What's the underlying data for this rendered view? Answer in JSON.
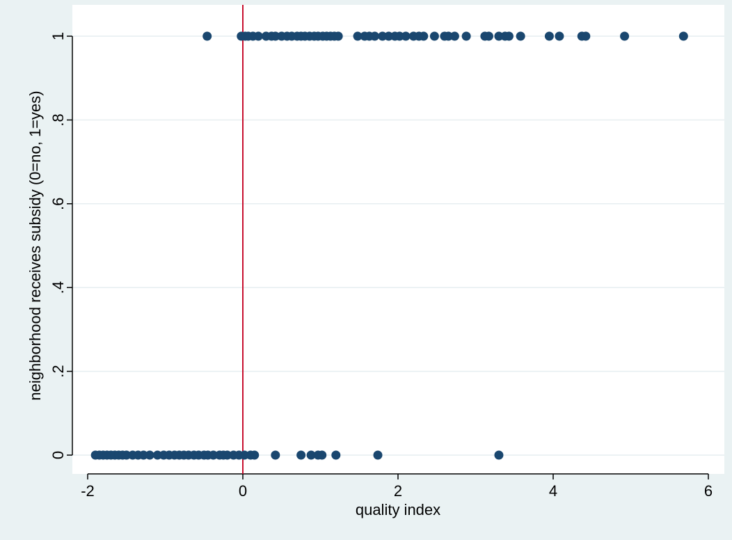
{
  "chart_data": {
    "type": "scatter",
    "title": "",
    "xlabel": "quality index",
    "ylabel": "neighborhood receives subsidy (0=no, 1=yes)",
    "xlim": [
      -2,
      6
    ],
    "ylim": [
      0,
      1
    ],
    "x_ticks": [
      -2,
      0,
      2,
      4,
      6
    ],
    "x_tick_labels": [
      "-2",
      "0",
      "2",
      "4",
      "6"
    ],
    "y_ticks": [
      0,
      0.2,
      0.4,
      0.6,
      0.8,
      1
    ],
    "y_tick_labels": [
      "0",
      ".2",
      ".4",
      ".6",
      ".8",
      "1"
    ],
    "grid": "horizontal",
    "reference_line": {
      "axis": "x",
      "value": 0,
      "color": "#c8102e"
    },
    "marker_color": "#1a476f",
    "points": [
      {
        "x": -0.46,
        "y": 1
      },
      {
        "x": -0.02,
        "y": 1
      },
      {
        "x": 0.03,
        "y": 1
      },
      {
        "x": 0.07,
        "y": 1
      },
      {
        "x": 0.13,
        "y": 1
      },
      {
        "x": 0.2,
        "y": 1
      },
      {
        "x": 0.3,
        "y": 1
      },
      {
        "x": 0.37,
        "y": 1
      },
      {
        "x": 0.42,
        "y": 1
      },
      {
        "x": 0.5,
        "y": 1
      },
      {
        "x": 0.57,
        "y": 1
      },
      {
        "x": 0.63,
        "y": 1
      },
      {
        "x": 0.7,
        "y": 1
      },
      {
        "x": 0.75,
        "y": 1
      },
      {
        "x": 0.8,
        "y": 1
      },
      {
        "x": 0.86,
        "y": 1
      },
      {
        "x": 0.92,
        "y": 1
      },
      {
        "x": 0.97,
        "y": 1
      },
      {
        "x": 1.03,
        "y": 1
      },
      {
        "x": 1.08,
        "y": 1
      },
      {
        "x": 1.13,
        "y": 1
      },
      {
        "x": 1.18,
        "y": 1
      },
      {
        "x": 1.23,
        "y": 1
      },
      {
        "x": 1.48,
        "y": 1
      },
      {
        "x": 1.57,
        "y": 1
      },
      {
        "x": 1.63,
        "y": 1
      },
      {
        "x": 1.7,
        "y": 1
      },
      {
        "x": 1.8,
        "y": 1
      },
      {
        "x": 1.88,
        "y": 1
      },
      {
        "x": 1.96,
        "y": 1
      },
      {
        "x": 2.02,
        "y": 1
      },
      {
        "x": 2.1,
        "y": 1
      },
      {
        "x": 2.2,
        "y": 1
      },
      {
        "x": 2.27,
        "y": 1
      },
      {
        "x": 2.33,
        "y": 1
      },
      {
        "x": 2.47,
        "y": 1
      },
      {
        "x": 2.6,
        "y": 1
      },
      {
        "x": 2.65,
        "y": 1
      },
      {
        "x": 2.73,
        "y": 1
      },
      {
        "x": 2.88,
        "y": 1
      },
      {
        "x": 3.12,
        "y": 1
      },
      {
        "x": 3.17,
        "y": 1
      },
      {
        "x": 3.3,
        "y": 1
      },
      {
        "x": 3.38,
        "y": 1
      },
      {
        "x": 3.43,
        "y": 1
      },
      {
        "x": 3.58,
        "y": 1
      },
      {
        "x": 3.95,
        "y": 1
      },
      {
        "x": 4.08,
        "y": 1
      },
      {
        "x": 4.37,
        "y": 1
      },
      {
        "x": 4.42,
        "y": 1
      },
      {
        "x": 4.92,
        "y": 1
      },
      {
        "x": 5.68,
        "y": 1
      },
      {
        "x": -1.9,
        "y": 0
      },
      {
        "x": -1.85,
        "y": 0
      },
      {
        "x": -1.8,
        "y": 0
      },
      {
        "x": -1.75,
        "y": 0
      },
      {
        "x": -1.7,
        "y": 0
      },
      {
        "x": -1.65,
        "y": 0
      },
      {
        "x": -1.6,
        "y": 0
      },
      {
        "x": -1.55,
        "y": 0
      },
      {
        "x": -1.5,
        "y": 0
      },
      {
        "x": -1.42,
        "y": 0
      },
      {
        "x": -1.35,
        "y": 0
      },
      {
        "x": -1.28,
        "y": 0
      },
      {
        "x": -1.2,
        "y": 0
      },
      {
        "x": -1.1,
        "y": 0
      },
      {
        "x": -1.02,
        "y": 0
      },
      {
        "x": -0.95,
        "y": 0
      },
      {
        "x": -0.88,
        "y": 0
      },
      {
        "x": -0.82,
        "y": 0
      },
      {
        "x": -0.76,
        "y": 0
      },
      {
        "x": -0.7,
        "y": 0
      },
      {
        "x": -0.63,
        "y": 0
      },
      {
        "x": -0.57,
        "y": 0
      },
      {
        "x": -0.5,
        "y": 0
      },
      {
        "x": -0.45,
        "y": 0
      },
      {
        "x": -0.38,
        "y": 0
      },
      {
        "x": -0.3,
        "y": 0
      },
      {
        "x": -0.25,
        "y": 0
      },
      {
        "x": -0.2,
        "y": 0
      },
      {
        "x": -0.12,
        "y": 0
      },
      {
        "x": -0.05,
        "y": 0
      },
      {
        "x": 0.02,
        "y": 0
      },
      {
        "x": 0.1,
        "y": 0
      },
      {
        "x": 0.15,
        "y": 0
      },
      {
        "x": 0.42,
        "y": 0
      },
      {
        "x": 0.75,
        "y": 0
      },
      {
        "x": 0.88,
        "y": 0
      },
      {
        "x": 0.97,
        "y": 0
      },
      {
        "x": 1.02,
        "y": 0
      },
      {
        "x": 1.2,
        "y": 0
      },
      {
        "x": 1.74,
        "y": 0
      },
      {
        "x": 3.3,
        "y": 0
      }
    ]
  }
}
